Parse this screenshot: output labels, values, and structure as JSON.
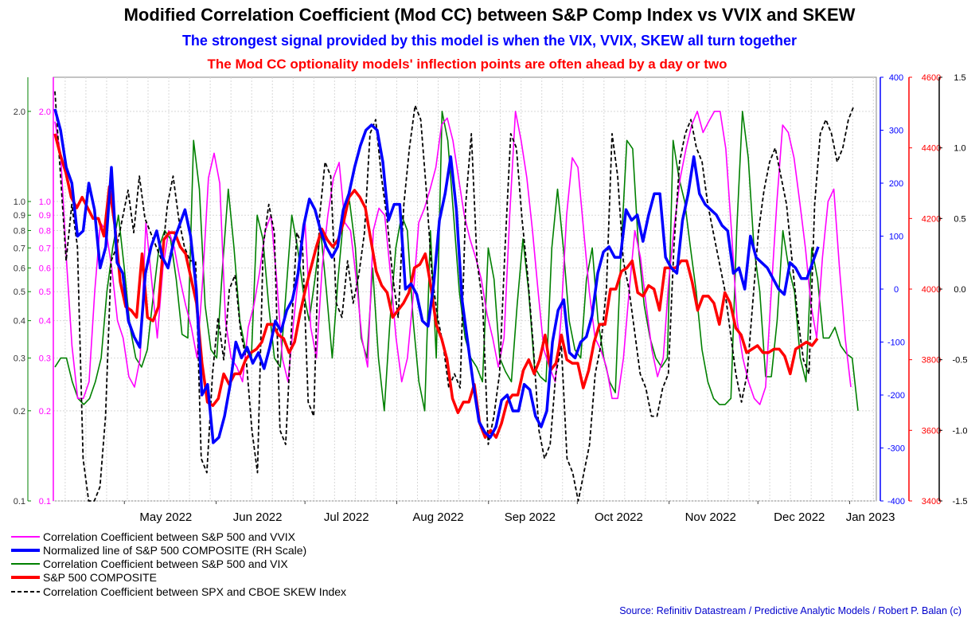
{
  "header": {
    "title": "Modified Correlation Coefficient (Mod CC) between S&P Comp Index vs VVIX and SKEW",
    "subtitle1": "The strongest signal provided by this model is when the VIX, VVIX, SKEW all turn together",
    "subtitle2": "The Mod CC optionality models' inflection points are often ahead by a day or two"
  },
  "source": "Source: Refinitiv Datastream / Predictive Analytic Models / Robert P. Balan (c)",
  "colors": {
    "vvix_cc": "#ff00ff",
    "normalized_spx": "#0000ff",
    "vix_cc": "#008000",
    "spx": "#ff0000",
    "skew_cc": "#000000",
    "subtitle1": "#0000ff",
    "subtitle2": "#ff0000",
    "source": "#0000cc"
  },
  "chart_data": {
    "type": "line",
    "x_labels": [
      "May 2022",
      "Jun 2022",
      "Jul 2022",
      "Aug 2022",
      "Sep 2022",
      "Oct 2022",
      "Nov 2022",
      "Dec 2022",
      "Jan 2023"
    ],
    "x_range": [
      "2022-04-07",
      "2023-01-10"
    ],
    "axes": {
      "left_green": {
        "scale": "log",
        "range": [
          0.1,
          2.6
        ],
        "ticks": [
          "0.1",
          "0.2",
          "0.3",
          "0.4",
          "0.5",
          "0.6",
          "0.7",
          "0.8",
          "0.9",
          "1.0",
          "2.0"
        ],
        "color": "#008000"
      },
      "left_magenta": {
        "scale": "log",
        "range": [
          0.1,
          2.6
        ],
        "ticks": [
          "0.1",
          "0.2",
          "0.3",
          "0.4",
          "0.5",
          "0.6",
          "0.7",
          "0.8",
          "0.9",
          "1.0",
          "2.0"
        ],
        "color": "#ff00ff"
      },
      "right_blue": {
        "range": [
          -400,
          400
        ],
        "ticks": [
          "-400",
          "-300",
          "-200",
          "-100",
          "0",
          "100",
          "200",
          "300",
          "400"
        ],
        "color": "#0000ff"
      },
      "right_red": {
        "range": [
          3400,
          4600
        ],
        "ticks": [
          "3400",
          "3600",
          "3800",
          "4000",
          "4200",
          "4400",
          "4600"
        ],
        "color": "#ff0000"
      },
      "right_black": {
        "range": [
          -1.5,
          1.5
        ],
        "ticks": [
          "-1.5",
          "-1.0",
          "-0.5",
          "0.0",
          "0.5",
          "1.0",
          "1.5"
        ],
        "color": "#000000"
      }
    },
    "grid": true,
    "legend_position": "bottom-left",
    "series": [
      {
        "name": "Correlation Coefficient between S&P 500 and VVIX",
        "axis": "left_magenta",
        "values": [
          1.85,
          1.45,
          0.65,
          0.33,
          0.22,
          0.22,
          0.25,
          0.5,
          0.85,
          0.8,
          0.6,
          0.4,
          0.35,
          0.26,
          0.24,
          0.3,
          0.85,
          0.55,
          0.35,
          0.6,
          0.8,
          0.7,
          0.55,
          0.45,
          0.38,
          0.3,
          0.55,
          1.2,
          1.45,
          1.15,
          0.4,
          0.3,
          0.28,
          0.25,
          0.38,
          0.45,
          0.58,
          0.8,
          0.9,
          0.55,
          0.3,
          0.25,
          0.4,
          0.6,
          0.85,
          0.38,
          0.3,
          0.6,
          0.9,
          1.2,
          1.35,
          0.85,
          0.8,
          0.55,
          0.35,
          0.28,
          0.8,
          0.95,
          0.9,
          0.58,
          0.35,
          0.25,
          0.3,
          0.48,
          0.85,
          0.95,
          1.1,
          1.3,
          1.8,
          1.9,
          1.6,
          1.2,
          0.9,
          0.75,
          0.65,
          0.55,
          0.42,
          0.35,
          0.28,
          0.35,
          0.9,
          2.0,
          1.6,
          1.2,
          0.8,
          0.5,
          0.32,
          0.28,
          0.25,
          0.4,
          0.9,
          1.4,
          1.3,
          0.8,
          0.5,
          0.35,
          0.32,
          0.28,
          0.22,
          0.22,
          0.3,
          0.5,
          0.8,
          0.65,
          0.45,
          0.32,
          0.26,
          0.3,
          0.55,
          0.85,
          1.2,
          1.5,
          1.8,
          2.0,
          1.7,
          1.85,
          2.0,
          2.0,
          1.5,
          0.8,
          0.4,
          0.3,
          0.25,
          0.22,
          0.21,
          0.24,
          0.5,
          1.0,
          1.8,
          1.7,
          1.4,
          1.0,
          0.7,
          0.45,
          0.35,
          0.65,
          1.0,
          1.1,
          0.6,
          0.35,
          0.24
        ]
      },
      {
        "name": "Normalized line of S&P 500 COMPOSITE (RH Scale)",
        "axis": "right_blue",
        "values": [
          340,
          300,
          230,
          200,
          100,
          110,
          200,
          150,
          40,
          80,
          230,
          50,
          30,
          -60,
          -90,
          -110,
          30,
          80,
          110,
          60,
          40,
          90,
          120,
          150,
          100,
          0,
          -200,
          -180,
          -290,
          -280,
          -240,
          -180,
          -100,
          -130,
          -110,
          -140,
          -120,
          -150,
          -110,
          -60,
          -80,
          -40,
          -20,
          30,
          120,
          170,
          150,
          110,
          80,
          60,
          80,
          150,
          180,
          230,
          270,
          300,
          310,
          300,
          240,
          130,
          160,
          160,
          0,
          10,
          -10,
          -60,
          -70,
          10,
          130,
          180,
          250,
          150,
          -20,
          -100,
          -180,
          -250,
          -270,
          -280,
          -260,
          -210,
          -200,
          -230,
          -230,
          -180,
          -190,
          -240,
          -260,
          -230,
          -100,
          -40,
          -20,
          -120,
          -130,
          -100,
          -90,
          -50,
          30,
          70,
          80,
          60,
          60,
          150,
          130,
          140,
          90,
          140,
          180,
          180,
          60,
          40,
          30,
          130,
          180,
          250,
          180,
          160,
          150,
          140,
          120,
          110,
          30,
          40,
          0,
          100,
          60,
          50,
          40,
          20,
          0,
          -10,
          50,
          40,
          20,
          20,
          50,
          80
        ]
      },
      {
        "name": "Correlation Coefficient between S&P 500 and VIX",
        "axis": "left_green",
        "values": [
          0.28,
          0.3,
          0.3,
          0.25,
          0.22,
          0.21,
          0.22,
          0.25,
          0.3,
          0.5,
          0.7,
          0.9,
          0.6,
          0.38,
          0.3,
          0.28,
          0.32,
          0.48,
          0.7,
          0.8,
          0.75,
          0.55,
          0.36,
          0.35,
          1.6,
          1.1,
          0.45,
          0.32,
          0.3,
          0.6,
          1.1,
          0.7,
          0.4,
          0.32,
          0.3,
          0.9,
          0.75,
          0.45,
          0.3,
          0.28,
          0.5,
          0.9,
          0.7,
          0.5,
          0.4,
          0.55,
          0.8,
          0.5,
          0.3,
          0.55,
          0.9,
          1.0,
          0.7,
          0.35,
          0.3,
          0.6,
          0.3,
          0.2,
          0.4,
          0.7,
          0.9,
          0.8,
          0.4,
          0.25,
          0.2,
          0.8,
          0.3,
          2.0,
          1.6,
          0.9,
          0.5,
          0.35,
          0.3,
          0.28,
          0.25,
          0.7,
          0.55,
          0.3,
          0.27,
          0.25,
          0.45,
          0.75,
          0.5,
          0.28,
          0.26,
          0.25,
          0.7,
          1.1,
          0.7,
          0.4,
          0.32,
          0.3,
          0.55,
          0.7,
          0.4,
          0.3,
          0.25,
          0.23,
          0.7,
          1.6,
          1.5,
          0.7,
          0.45,
          0.35,
          0.3,
          0.28,
          0.3,
          1.6,
          1.2,
          1.0,
          0.7,
          0.5,
          0.32,
          0.25,
          0.22,
          0.21,
          0.21,
          0.22,
          0.8,
          2.0,
          1.4,
          0.7,
          0.5,
          0.26,
          0.26,
          0.4,
          0.8,
          0.6,
          0.5,
          0.3,
          0.25,
          0.7,
          0.55,
          0.35,
          0.35,
          0.38,
          0.33,
          0.31,
          0.3,
          0.2
        ]
      },
      {
        "name": "S&P 500 COMPOSITE",
        "axis": "right_red",
        "values": [
          4440,
          4380,
          4330,
          4260,
          4230,
          4260,
          4230,
          4200,
          4200,
          4150,
          4290,
          4180,
          4020,
          3950,
          3940,
          3920,
          4100,
          3920,
          3910,
          3950,
          4140,
          4160,
          4160,
          4120,
          4100,
          4030,
          3960,
          3790,
          3680,
          3670,
          3690,
          3760,
          3730,
          3760,
          3760,
          3800,
          3820,
          3830,
          3850,
          3900,
          3900,
          3870,
          3860,
          3820,
          3850,
          3930,
          4000,
          4060,
          4120,
          4170,
          4140,
          4120,
          4140,
          4190,
          4260,
          4280,
          4260,
          4230,
          4140,
          4050,
          4010,
          3990,
          3920,
          3940,
          3960,
          3990,
          4060,
          4070,
          4100,
          4010,
          3900,
          3860,
          3800,
          3690,
          3650,
          3680,
          3680,
          3730,
          3620,
          3580,
          3600,
          3580,
          3620,
          3680,
          3700,
          3700,
          3770,
          3800,
          3760,
          3800,
          3870,
          3770,
          3790,
          3870,
          3800,
          3790,
          3790,
          3720,
          3770,
          3850,
          3900,
          3900,
          4000,
          4000,
          4050,
          4060,
          4080,
          3990,
          3980,
          4010,
          4000,
          3940,
          4060,
          4060,
          4060,
          4080,
          4080,
          4020,
          3940,
          3980,
          3980,
          3960,
          3900,
          3990,
          3960,
          3890,
          3870,
          3820,
          3830,
          3840,
          3820,
          3820,
          3830,
          3830,
          3810,
          3760,
          3830,
          3840,
          3850,
          3840,
          3860
        ]
      },
      {
        "name": "Correlation Coefficient between SPX and CBOE SKEW Index",
        "axis": "right_black",
        "values": [
          1.4,
          0.8,
          0.2,
          0.6,
          0.3,
          -1.2,
          -1.5,
          -1.5,
          -1.4,
          -0.9,
          0.2,
          0.3,
          0.5,
          0.7,
          0.4,
          0.8,
          0.5,
          0.4,
          0.3,
          0.2,
          0.6,
          0.8,
          0.5,
          0.3,
          0.2,
          0.2,
          -1.2,
          -1.3,
          -0.6,
          -0.2,
          -0.5,
          0.0,
          0.1,
          -0.3,
          -0.5,
          -1.0,
          -1.3,
          0.3,
          0.6,
          0.4,
          -1.0,
          -1.1,
          -0.3,
          0.4,
          0.3,
          -0.8,
          -0.9,
          0.5,
          0.9,
          0.8,
          -0.1,
          -0.2,
          0.2,
          -0.1,
          0.1,
          0.4,
          1.1,
          1.2,
          0.8,
          0.5,
          0.1,
          -0.2,
          0.6,
          1.0,
          1.3,
          1.2,
          0.7,
          0.1,
          -0.2,
          -0.4,
          -0.7,
          -0.6,
          -0.7,
          0.6,
          1.1,
          0.2,
          -0.1,
          -1.1,
          -0.9,
          -0.6,
          0.3,
          1.1,
          1.0,
          0.5,
          0.1,
          -0.4,
          -1.0,
          -1.2,
          -1.1,
          -0.6,
          -0.4,
          -1.2,
          -1.3,
          -1.5,
          -1.3,
          -1.1,
          -0.6,
          -0.4,
          0.0,
          1.1,
          0.8,
          0.2,
          0.0,
          -0.3,
          -0.6,
          -0.7,
          -0.9,
          -0.9,
          -0.7,
          -0.6,
          0.3,
          0.9,
          1.1,
          1.2,
          1.0,
          0.9,
          0.6,
          0.4,
          0.2,
          0.0,
          -0.3,
          -0.6,
          -0.8,
          -0.6,
          -0.1,
          0.4,
          0.7,
          0.9,
          1.0,
          0.8,
          0.6,
          0.2,
          -0.2,
          -0.5,
          -0.6,
          0.6,
          1.1,
          1.2,
          1.1,
          0.9,
          1.0,
          1.2,
          1.3
        ]
      }
    ]
  }
}
